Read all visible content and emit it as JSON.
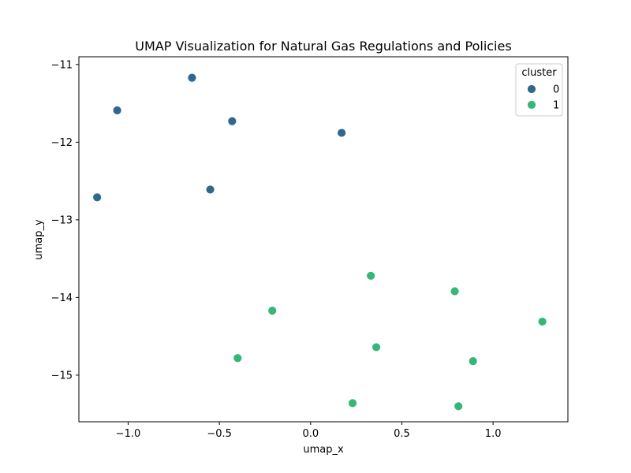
{
  "chart_data": {
    "type": "scatter",
    "title": "UMAP Visualization for Natural Gas Regulations and Policies",
    "xlabel": "umap_x",
    "ylabel": "umap_y",
    "xlim": [
      -1.27,
      1.41
    ],
    "ylim": [
      -15.6,
      -10.9
    ],
    "xticks": [
      -1.0,
      -0.5,
      0.0,
      0.5,
      1.0
    ],
    "xtick_labels": [
      "−1.0",
      "−0.5",
      "0.0",
      "0.5",
      "1.0"
    ],
    "yticks": [
      -15,
      -14,
      -13,
      -12,
      -11
    ],
    "ytick_labels": [
      "−15",
      "−14",
      "−13",
      "−12",
      "−11"
    ],
    "grid": false,
    "legend": {
      "title": "cluster",
      "placement": "top-right",
      "entries": [
        {
          "label": "0",
          "color": "#30678d"
        },
        {
          "label": "1",
          "color": "#35b778"
        }
      ]
    },
    "series": [
      {
        "name": "0",
        "color": "#30678d",
        "points": [
          {
            "x": -0.65,
            "y": -11.17
          },
          {
            "x": -1.06,
            "y": -11.59
          },
          {
            "x": -0.43,
            "y": -11.73
          },
          {
            "x": 0.17,
            "y": -11.88
          },
          {
            "x": -0.55,
            "y": -12.61
          },
          {
            "x": -1.17,
            "y": -12.71
          }
        ]
      },
      {
        "name": "1",
        "color": "#35b778",
        "points": [
          {
            "x": 0.33,
            "y": -13.72
          },
          {
            "x": 0.79,
            "y": -13.92
          },
          {
            "x": -0.21,
            "y": -14.17
          },
          {
            "x": 1.27,
            "y": -14.31
          },
          {
            "x": 0.36,
            "y": -14.64
          },
          {
            "x": -0.4,
            "y": -14.78
          },
          {
            "x": 0.89,
            "y": -14.82
          },
          {
            "x": 0.23,
            "y": -15.36
          },
          {
            "x": 0.81,
            "y": -15.4
          }
        ]
      }
    ]
  }
}
